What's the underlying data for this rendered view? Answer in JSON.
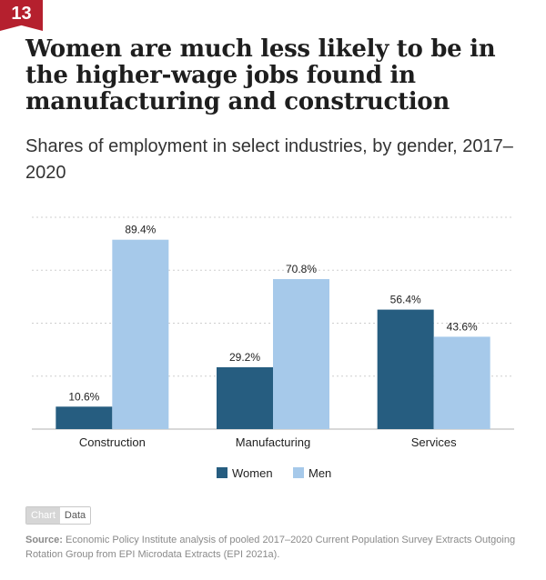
{
  "badge": "13",
  "title": "Women are much less likely to be in the higher-wage jobs found in manufacturing and construction",
  "subtitle": "Shares of employment in select industries, by gender, 2017–2020",
  "toggle": {
    "chart_label": "Chart",
    "data_label": "Data"
  },
  "source": {
    "label": "Source:",
    "text": "Economic Policy Institute analysis of pooled 2017–2020 Current Population Survey Extracts Outgoing Rotation Group from EPI Microdata Extracts (EPI 2021a)."
  },
  "chart_data": {
    "type": "bar",
    "categories": [
      "Construction",
      "Manufacturing",
      "Services"
    ],
    "series": [
      {
        "name": "Women",
        "values": [
          10.6,
          29.2,
          56.4
        ],
        "labels": [
          "10.6%",
          "29.2%",
          "56.4%"
        ],
        "color": "#265d80"
      },
      {
        "name": "Men",
        "values": [
          89.4,
          70.8,
          43.6
        ],
        "labels": [
          "89.4%",
          "70.8%",
          "43.6%"
        ],
        "color": "#a6c9ea"
      }
    ],
    "ylim": [
      0,
      100
    ],
    "grid": true,
    "legend": "bottom-center"
  }
}
